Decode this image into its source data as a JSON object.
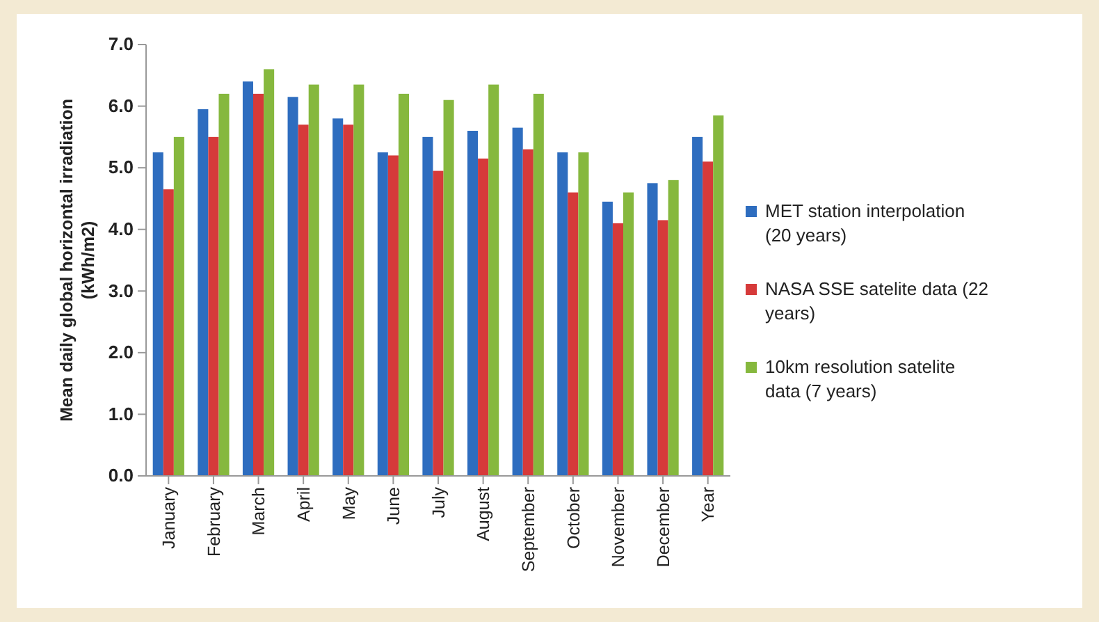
{
  "chart_data": {
    "type": "bar",
    "ylabel": "Mean daily global horizontal irradiation (kWh/m2)",
    "categories": [
      "January",
      "February",
      "March",
      "April",
      "May",
      "June",
      "July",
      "August",
      "September",
      "October",
      "November",
      "December",
      "Year"
    ],
    "series": [
      {
        "name": "MET station interpolation (20 years)",
        "color": "#2e6dbf",
        "values": [
          5.25,
          5.95,
          6.4,
          6.15,
          5.8,
          5.25,
          5.5,
          5.6,
          5.65,
          5.25,
          4.45,
          4.75,
          5.5
        ]
      },
      {
        "name": "NASA SSE satelite data (22 years)",
        "color": "#d63a3a",
        "values": [
          4.65,
          5.5,
          6.2,
          5.7,
          5.7,
          5.2,
          4.95,
          5.15,
          5.3,
          4.6,
          4.1,
          4.15,
          5.1
        ]
      },
      {
        "name": "10km resolution satelite data (7 years)",
        "color": "#86b83e",
        "values": [
          5.5,
          6.2,
          6.6,
          6.35,
          6.35,
          6.2,
          6.1,
          6.35,
          6.2,
          5.25,
          4.6,
          4.8,
          5.85
        ]
      }
    ],
    "ylim": [
      0,
      7
    ],
    "yticks": [
      {
        "value": 0,
        "label": "0.0"
      },
      {
        "value": 1,
        "label": "1.0"
      },
      {
        "value": 2,
        "label": "2.0"
      },
      {
        "value": 3,
        "label": "3.0"
      },
      {
        "value": 4,
        "label": "4.0"
      },
      {
        "value": 5,
        "label": "5.0"
      },
      {
        "value": 6,
        "label": "6.0"
      },
      {
        "value": 7,
        "label": "7.0"
      }
    ],
    "grid": false,
    "legend": "right"
  }
}
